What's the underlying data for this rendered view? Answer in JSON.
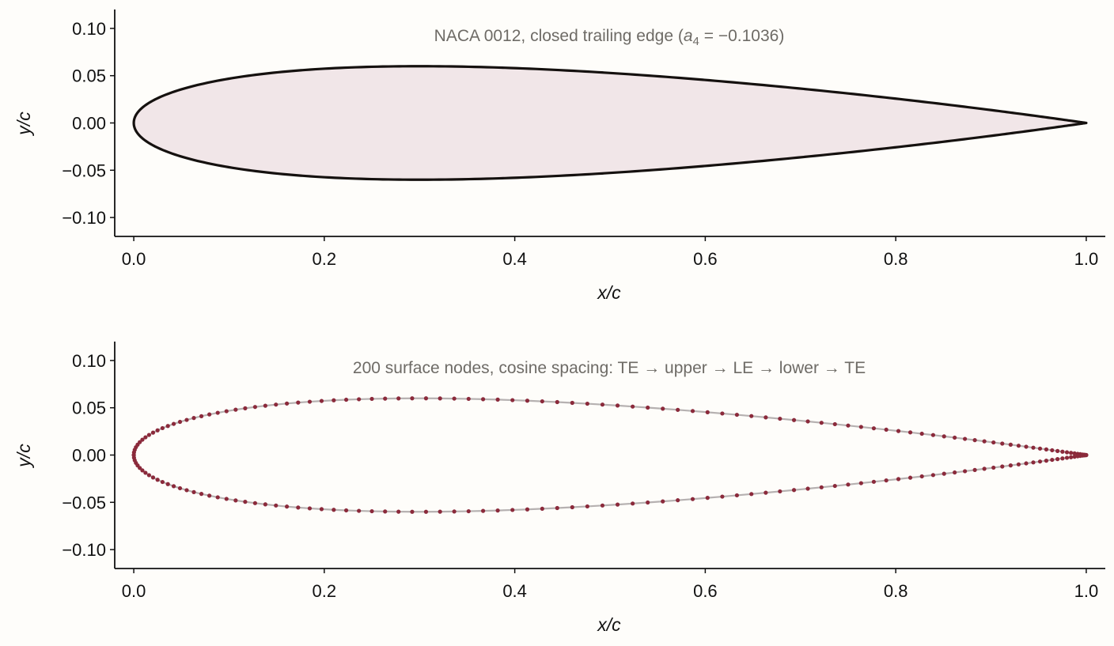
{
  "chart_data": [
    {
      "type": "line",
      "title": "NACA 0012, closed trailing edge (a₄ = −0.1036)",
      "title_parts": {
        "prefix": "NACA 0012, closed trailing edge (",
        "a": "a",
        "sub": "4",
        "rest": " = −0.1036)"
      },
      "xlabel": "x/c",
      "ylabel": "y/c",
      "xlim": [
        -0.02,
        1.02
      ],
      "ylim": [
        -0.12,
        0.12
      ],
      "x_ticks": [
        "0.0",
        "0.2",
        "0.4",
        "0.6",
        "0.8",
        "1.0"
      ],
      "x_tick_values": [
        0,
        0.2,
        0.4,
        0.6,
        0.8,
        1.0
      ],
      "y_ticks": [
        "0.10",
        "0.05",
        "0.00",
        "−0.05",
        "−0.10"
      ],
      "y_tick_values": [
        0.1,
        0.05,
        0.0,
        -0.05,
        -0.1
      ],
      "airfoil": {
        "thickness": 0.12,
        "a4": -0.1036,
        "closed_trailing_edge": true
      },
      "fill_color": "#f1e6e8",
      "line_color": "#15110f",
      "grid": false
    },
    {
      "type": "scatter",
      "title": "200 surface nodes, cosine spacing: TE → upper → LE → lower → TE",
      "xlabel": "x/c",
      "ylabel": "y/c",
      "xlim": [
        -0.02,
        1.02
      ],
      "ylim": [
        -0.12,
        0.12
      ],
      "x_ticks": [
        "0.0",
        "0.2",
        "0.4",
        "0.6",
        "0.8",
        "1.0"
      ],
      "x_tick_values": [
        0,
        0.2,
        0.4,
        0.6,
        0.8,
        1.0
      ],
      "y_ticks": [
        "0.10",
        "0.05",
        "0.00",
        "−0.05",
        "−0.10"
      ],
      "y_tick_values": [
        0.1,
        0.05,
        0.0,
        -0.05,
        -0.1
      ],
      "node_count": 200,
      "spacing": "cosine",
      "ordering": [
        "TE",
        "upper",
        "LE",
        "lower",
        "TE"
      ],
      "marker_color": "#8b2a3b",
      "line_color": "#a9a3a3",
      "grid": false
    }
  ]
}
